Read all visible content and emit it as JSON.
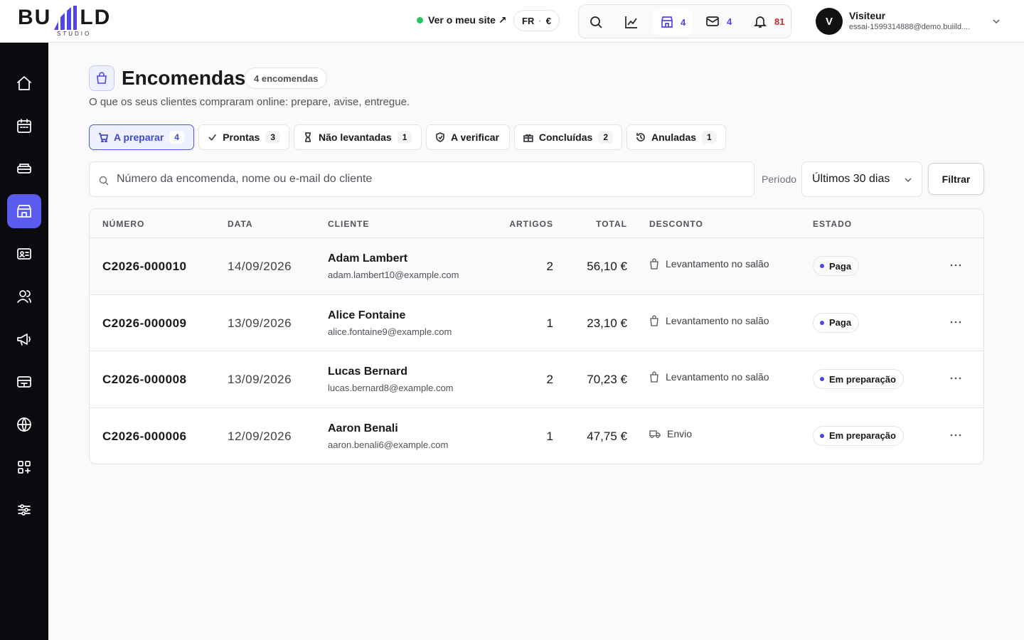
{
  "header": {
    "logo_left": "BU",
    "logo_right": "LD",
    "logo_sub": "STUDIO",
    "site_link": "Ver o meu site ↗",
    "locale": "FR",
    "currency": "€",
    "store_count": 4,
    "mail_count": 4,
    "notif_count": 81,
    "user": {
      "initial": "V",
      "name": "Visiteur",
      "email": "essai-1599314888@demo.buiild...."
    }
  },
  "page": {
    "title": "Encomendas",
    "count_badge": "4 encomendas",
    "subtitle": "O que os seus clientes compraram online: prepare, avise, entregue."
  },
  "tabs": [
    {
      "label": "A preparar",
      "count": 4
    },
    {
      "label": "Prontas",
      "count": 3
    },
    {
      "label": "Não levantadas",
      "count": 1
    },
    {
      "label": "A verificar"
    },
    {
      "label": "Concluídas",
      "count": 2
    },
    {
      "label": "Anuladas",
      "count": 1
    }
  ],
  "search": {
    "placeholder": "Número da encomenda, nome ou e-mail do cliente",
    "period_label": "Período",
    "period_value": "Últimos 30 dias",
    "filter_button": "Filtrar"
  },
  "table": {
    "columns": [
      "NÚMERO",
      "DATA",
      "CLIENTE",
      "ARTIGOS",
      "TOTAL",
      "DESCONTO",
      "ESTADO"
    ],
    "rows": [
      {
        "number": "C2026-000010",
        "date": "14/09/2026",
        "client": "Adam Lambert",
        "email": "adam.lambert10@example.com",
        "items": 2,
        "total": "56,10 €",
        "discount": "Levantamento no salão",
        "status": "Paga"
      },
      {
        "number": "C2026-000009",
        "date": "13/09/2026",
        "client": "Alice Fontaine",
        "email": "alice.fontaine9@example.com",
        "items": 1,
        "total": "23,10 €",
        "discount": "Levantamento no salão",
        "status": "Paga"
      },
      {
        "number": "C2026-000008",
        "date": "13/09/2026",
        "client": "Lucas Bernard",
        "email": "lucas.bernard8@example.com",
        "items": 2,
        "total": "70,23 €",
        "discount": "Levantamento no salão",
        "status": "Em preparação"
      },
      {
        "number": "C2026-000006",
        "date": "12/09/2026",
        "client": "Aaron Benali",
        "email": "aaron.benali6@example.com",
        "items": 1,
        "total": "47,75 €",
        "discount": "Envio",
        "status": "Em preparação"
      }
    ]
  }
}
